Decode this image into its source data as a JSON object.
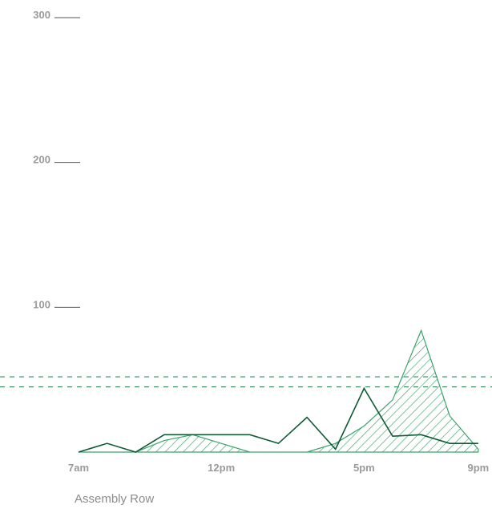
{
  "chart_data": {
    "type": "line",
    "title": "",
    "xlabel": "",
    "ylabel": "",
    "caption": "Assembly Row",
    "ylim": [
      0,
      300
    ],
    "xlim": [
      7,
      21.2
    ],
    "y_ticks": [
      {
        "value": 300,
        "label": "300"
      },
      {
        "value": 200,
        "label": "200"
      },
      {
        "value": 100,
        "label": "100"
      }
    ],
    "x_ticks": [
      {
        "value": 7,
        "label": "7am"
      },
      {
        "value": 12,
        "label": "12pm"
      },
      {
        "value": 17,
        "label": "5pm"
      },
      {
        "value": 21,
        "label": "9pm"
      }
    ],
    "reference_lines": [
      52,
      45
    ],
    "series": [
      {
        "style": "hatched-area",
        "color": "#3aa36b",
        "x": [
          7,
          8,
          9,
          10,
          11,
          12,
          13,
          14,
          15,
          16,
          17,
          18,
          19,
          20,
          21
        ],
        "y": [
          0,
          0,
          0,
          8,
          12,
          6,
          0,
          0,
          0,
          6,
          18,
          36,
          84,
          25,
          2
        ]
      },
      {
        "style": "line",
        "color": "#0d5c34",
        "x": [
          7,
          8,
          9,
          10,
          11,
          12,
          13,
          14,
          15,
          16,
          17,
          18,
          19,
          20,
          21
        ],
        "y": [
          0,
          6,
          0,
          12,
          12,
          12,
          12,
          6,
          24,
          2,
          44,
          11,
          12,
          6,
          6
        ]
      }
    ],
    "grid": false,
    "legend": "none",
    "colors": {
      "axis_text": "#9a9a9a",
      "tick_mark": "#555555",
      "reference": "#2e8b57"
    }
  }
}
